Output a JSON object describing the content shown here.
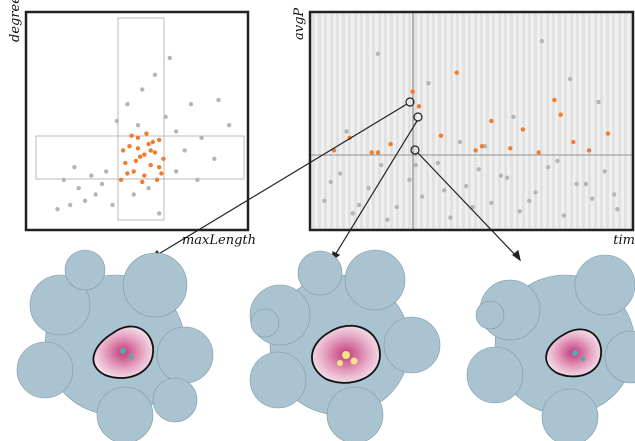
{
  "chart_data": [
    {
      "type": "scatter",
      "xlabel": "maxLength",
      "ylabel": "degree",
      "xlim": [
        0,
        10
      ],
      "ylim": [
        0,
        10
      ],
      "series": [
        {
          "color": "#b5b5b5",
          "x": [
            1.2,
            1.8,
            2.5,
            3.0,
            2.2,
            3.3,
            1.5,
            2.8,
            3.5,
            2.0,
            3.8,
            4.0,
            4.5,
            5.2,
            5.8,
            6.3,
            6.8,
            7.2,
            7.5,
            8.0,
            8.6,
            9.3,
            6.5,
            5.0,
            4.8,
            5.5,
            6.8,
            7.8,
            6.0,
            8.8
          ],
          "values": [
            0.8,
            1.0,
            1.2,
            1.5,
            1.8,
            2.0,
            2.2,
            2.4,
            2.6,
            2.8,
            1.0,
            5.0,
            5.8,
            6.5,
            7.2,
            5.2,
            4.5,
            3.6,
            5.8,
            4.2,
            3.2,
            4.8,
            8.0,
            4.8,
            1.5,
            1.8,
            2.6,
            2.2,
            0.6,
            6.0
          ]
        },
        {
          "color": "#f47b2a",
          "x": [
            4.2,
            4.4,
            4.6,
            4.8,
            5.0,
            5.1,
            5.3,
            5.5,
            5.6,
            5.8,
            6.0,
            6.1,
            4.3,
            4.7,
            5.2,
            5.4,
            5.9,
            6.2,
            4.5,
            5.7,
            4.9,
            5.0,
            5.3,
            5.6,
            6.0
          ],
          "values": [
            2.2,
            3.0,
            3.8,
            2.6,
            4.2,
            3.3,
            2.4,
            3.9,
            2.9,
            3.5,
            4.1,
            2.5,
            3.6,
            4.3,
            2.1,
            4.4,
            2.2,
            3.2,
            2.5,
            4.0,
            3.1,
            3.7,
            3.4,
            3.6,
            2.8
          ]
        }
      ]
    },
    {
      "type": "scatter",
      "xlabel": "tim",
      "ylabel": "avgP",
      "xlim": [
        0,
        10
      ],
      "ylim": [
        0,
        10
      ],
      "series": [
        {
          "color": "#b5b5b5",
          "x": [
            0.3,
            0.8,
            1.2,
            1.7,
            2.1,
            2.6,
            3.0,
            3.4,
            3.9,
            4.3,
            4.8,
            5.2,
            5.6,
            6.1,
            6.5,
            7.0,
            7.4,
            7.9,
            8.3,
            8.8,
            9.2,
            9.6,
            0.5,
            1.4,
            2.3,
            3.2,
            4.1,
            5.0,
            5.9,
            6.8,
            7.7,
            8.6,
            9.5,
            1.0,
            3.6,
            6.3,
            8.1,
            2.0,
            4.6,
            7.2,
            9.0,
            5.4
          ],
          "values": [
            1.2,
            2.5,
            0.6,
            1.8,
            2.9,
            0.9,
            2.2,
            1.4,
            3.0,
            0.4,
            1.9,
            2.7,
            1.1,
            2.3,
            0.7,
            1.6,
            2.8,
            0.5,
            2.0,
            1.3,
            2.6,
            0.8,
            2.1,
            1.0,
            0.3,
            2.9,
            1.7,
            0.9,
            2.4,
            1.2,
            3.1,
            2.0,
            1.5,
            4.5,
            6.8,
            5.2,
            7.0,
            8.2,
            4.0,
            8.8,
            5.9,
            3.8
          ]
        },
        {
          "color": "#f47b2a",
          "x": [
            0.6,
            1.1,
            1.8,
            2.4,
            3.1,
            3.3,
            4.0,
            4.5,
            5.1,
            5.6,
            6.2,
            6.6,
            7.1,
            7.6,
            8.2,
            8.7,
            9.3,
            2.0,
            5.3,
            7.8
          ],
          "values": [
            3.6,
            4.2,
            3.5,
            3.9,
            6.4,
            5.7,
            4.3,
            7.3,
            3.6,
            5.0,
            3.7,
            4.6,
            3.5,
            6.0,
            4.0,
            3.6,
            4.4,
            3.5,
            3.8,
            5.3
          ]
        }
      ]
    }
  ]
}
